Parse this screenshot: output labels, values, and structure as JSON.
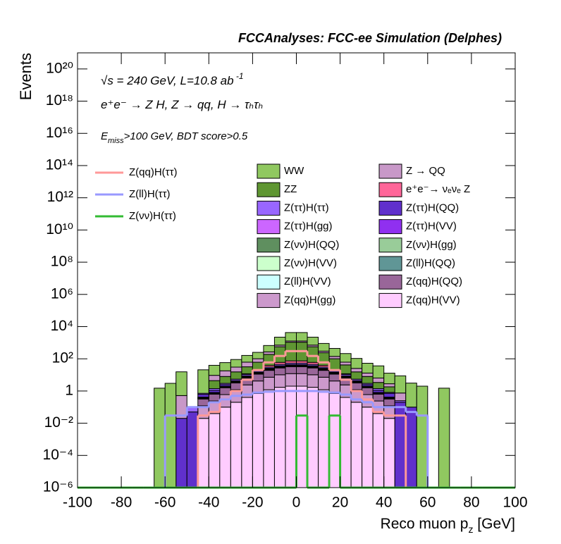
{
  "chart_data": {
    "type": "histogram",
    "stacked": true,
    "logy": true,
    "title": "FCCAnalyses: FCC-ee Simulation (Delphes)",
    "ylabel": "Events",
    "xlabel": [
      "Reco muon p",
      "z",
      " [GeV]"
    ],
    "annotations": [
      [
        "√s = 240 GeV, L=10.8 ab",
        " -1"
      ],
      [
        "e⁺e⁻ → Z H, Z  → qq, H  → τₕτₕ"
      ],
      [
        "E",
        "miss",
        ">100 GeV, BDT score>0.5"
      ]
    ],
    "xlim": [
      -100,
      100
    ],
    "xticks": [
      -100,
      -80,
      -60,
      -40,
      -20,
      0,
      20,
      40,
      60,
      80,
      100
    ],
    "ylim": [
      1e-06,
      1e+21
    ],
    "yticks": [
      {
        "value": 1e-06,
        "label": "10⁻⁶"
      },
      {
        "value": 0.0001,
        "label": "10⁻⁴"
      },
      {
        "value": 0.01,
        "label": "10⁻²"
      },
      1,
      {
        "value": 100.0,
        "label": "10²"
      },
      {
        "value": 10000.0,
        "label": "10⁴"
      },
      {
        "value": 1000000.0,
        "label": "10⁶"
      },
      {
        "value": 100000000.0,
        "label": "10⁸"
      },
      {
        "value": 10000000000.0,
        "label": "10¹⁰"
      },
      {
        "value": 1000000000000.0,
        "label": "10¹²"
      },
      {
        "value": 100000000000000.0,
        "label": "10¹⁴"
      },
      {
        "value": 1e+16,
        "label": "10¹⁶"
      },
      {
        "value": 1e+18,
        "label": "10¹⁸"
      },
      {
        "value": 1e+20,
        "label": "10²⁰"
      }
    ],
    "bins": [
      -100,
      -95,
      -90,
      -85,
      -80,
      -75,
      -70,
      -65,
      -60,
      -55,
      -50,
      -45,
      -40,
      -35,
      -30,
      -25,
      -20,
      -15,
      -10,
      -5,
      0,
      5,
      10,
      15,
      20,
      25,
      30,
      35,
      40,
      45,
      50,
      55,
      60,
      65,
      70,
      75,
      80,
      85,
      90,
      95,
      100
    ],
    "series": [
      {
        "name": "WW",
        "color": "#90c860",
        "values": [
          0,
          0,
          0,
          0,
          0,
          0,
          0,
          1.5,
          3,
          15,
          0,
          20,
          30,
          40,
          60,
          100,
          150,
          400,
          1500,
          3000,
          3000,
          1500,
          600,
          300,
          150,
          80,
          40,
          30,
          10,
          8,
          3,
          2,
          0,
          1.5,
          0,
          0,
          0,
          0,
          0,
          0
        ]
      },
      {
        "name": "Z → QQ",
        "color": "#c898c8",
        "values": [
          0,
          0,
          0,
          0,
          0,
          0,
          0,
          0,
          0,
          0.5,
          0,
          0,
          5,
          10,
          15,
          30,
          40,
          80,
          150,
          200,
          200,
          150,
          60,
          40,
          20,
          10,
          5,
          3,
          1,
          0.5,
          0,
          0,
          0,
          0,
          0,
          0,
          0,
          0,
          0,
          0
        ]
      },
      {
        "name": "ZZ",
        "color": "#5f9632",
        "values": [
          0,
          0,
          0,
          0,
          0,
          0,
          0,
          0,
          0,
          0,
          0,
          0,
          3,
          5,
          10,
          20,
          40,
          150,
          500,
          1000,
          1000,
          500,
          200,
          80,
          30,
          10,
          5,
          2,
          1,
          0,
          0,
          0,
          0,
          0,
          0,
          0,
          0,
          0,
          0,
          0
        ]
      },
      {
        "name": "e⁺e⁻→ νₑνₑ Z",
        "color": "#ff6699",
        "values": [
          0,
          0,
          0,
          0,
          0,
          0,
          0,
          0,
          0,
          0,
          0,
          0,
          0,
          0,
          0,
          1,
          3,
          8,
          15,
          20,
          20,
          15,
          8,
          3,
          1,
          0,
          0,
          0,
          0,
          0,
          0,
          0,
          0,
          0,
          0,
          0,
          0,
          0,
          0,
          0
        ]
      },
      {
        "name": "Z(ττ)H(ττ)",
        "color": "#9966ff",
        "values": [
          0,
          0,
          0,
          0,
          0,
          0,
          0,
          0,
          0,
          0,
          0.05,
          0.1,
          0.3,
          0.5,
          1,
          2,
          3,
          5,
          8,
          10,
          10,
          8,
          5,
          3,
          2,
          1,
          0.5,
          0.3,
          0.1,
          0.05,
          0,
          0,
          0,
          0,
          0,
          0,
          0,
          0,
          0,
          0
        ]
      },
      {
        "name": "Z(ττ)H(QQ)",
        "color": "#6030cc",
        "values": [
          0,
          0,
          0,
          0,
          0,
          0,
          0,
          0,
          0,
          0.02,
          0.05,
          0.2,
          0.3,
          0.5,
          0.5,
          1,
          1.5,
          2.5,
          4,
          5,
          5,
          4,
          2.5,
          1.5,
          1,
          0.5,
          0.5,
          0.3,
          0.3,
          0.2,
          0.1,
          0,
          0,
          0,
          0,
          0,
          0,
          0,
          0,
          0
        ]
      },
      {
        "name": "Z(ττ)H(gg)",
        "color": "#cc66ff",
        "values": [
          0,
          0,
          0,
          0,
          0,
          0,
          0,
          0,
          0,
          0,
          0,
          0.02,
          0.04,
          0.1,
          0.2,
          0.4,
          0.7,
          1.2,
          1.7,
          2,
          2,
          1.7,
          1.2,
          0.7,
          0.4,
          0.2,
          0.1,
          0.04,
          0.02,
          0,
          0,
          0,
          0,
          0,
          0,
          0,
          0,
          0,
          0,
          0
        ]
      },
      {
        "name": "Z(ττ)H(VV)",
        "color": "#9030f0",
        "values": [
          0,
          0,
          0,
          0,
          0,
          0,
          0,
          0,
          0,
          0,
          0,
          0.03,
          0.06,
          0.15,
          0.3,
          0.6,
          1.05,
          1.8,
          2.55,
          3,
          3,
          2.55,
          1.8,
          1.05,
          0.6,
          0.3,
          0.15,
          0.06,
          0.03,
          0,
          0,
          0,
          0,
          0,
          0,
          0,
          0,
          0,
          0,
          0
        ]
      },
      {
        "name": "Z(νν)H(QQ)",
        "color": "#5f8f5f",
        "values": [
          0,
          0,
          0,
          0,
          0,
          0,
          0,
          0,
          0,
          0,
          0,
          0.01,
          0.02,
          0.05,
          0.1,
          0.2,
          0.35,
          0.6,
          0.85,
          1,
          1,
          0.85,
          0.6,
          0.35,
          0.2,
          0.1,
          0.05,
          0.02,
          0.01,
          0,
          0,
          0,
          0,
          0,
          0,
          0,
          0,
          0,
          0,
          0
        ]
      },
      {
        "name": "Z(νν)H(gg)",
        "color": "#99cc99",
        "values": [
          0,
          0,
          0,
          0,
          0,
          0,
          0,
          0,
          0,
          0,
          0,
          0.005,
          0.01,
          0.025,
          0.05,
          0.1,
          0.175,
          0.3,
          0.425,
          0.5,
          0.5,
          0.425,
          0.3,
          0.175,
          0.1,
          0.05,
          0.025,
          0.01,
          0.005,
          0,
          0,
          0,
          0,
          0,
          0,
          0,
          0,
          0,
          0,
          0
        ]
      },
      {
        "name": "Z(νν)H(VV)",
        "color": "#ccffcc",
        "values": [
          0,
          0,
          0,
          0,
          0,
          0,
          0,
          0,
          0,
          0,
          0,
          0.001,
          0.002,
          0.005,
          0.01,
          0.02,
          0.035,
          0.06,
          0.085,
          0.1,
          0.1,
          0.085,
          0.06,
          0.035,
          0.02,
          0.01,
          0.005,
          0.002,
          0.001,
          0,
          0,
          0,
          0,
          0,
          0,
          0,
          0,
          0,
          0,
          0
        ]
      },
      {
        "name": "Z(ll)H(QQ)",
        "color": "#609696",
        "values": [
          0,
          0,
          0,
          0,
          0,
          0,
          0,
          0,
          0,
          0,
          0,
          0.003,
          0.006,
          0.015,
          0.03,
          0.06,
          0.105,
          0.18,
          0.255,
          0.3,
          0.3,
          0.255,
          0.18,
          0.105,
          0.06,
          0.03,
          0.015,
          0.006,
          0.003,
          0,
          0,
          0,
          0,
          0,
          0,
          0,
          0,
          0,
          0,
          0
        ]
      },
      {
        "name": "Z(ll)H(VV)",
        "color": "#ccffff",
        "values": [
          0,
          0,
          0,
          0,
          0,
          0,
          0,
          0,
          0,
          0,
          0,
          0.03,
          0.03,
          0.03,
          0.03,
          0.03,
          0.03,
          0.03,
          0.03,
          0.03,
          0.03,
          0.03,
          0.03,
          0.03,
          0.03,
          0.03,
          0.03,
          0.03,
          0.03,
          0,
          0,
          0,
          0,
          0,
          0,
          0,
          0,
          0,
          0,
          0
        ]
      },
      {
        "name": "Z(qq)H(QQ)",
        "color": "#996699",
        "values": [
          0,
          0,
          0,
          0,
          0,
          0,
          0,
          0,
          0,
          0,
          0,
          0.2,
          0.4,
          1,
          2,
          4,
          7,
          12,
          17,
          20,
          20,
          17,
          12,
          7,
          4,
          2,
          1,
          0.4,
          0.2,
          0,
          0,
          0,
          0,
          0,
          0,
          0,
          0,
          0,
          0,
          0
        ]
      },
      {
        "name": "Z(qq)H(gg)",
        "color": "#cc99cc",
        "values": [
          0,
          0,
          0,
          0,
          0,
          0,
          0,
          0,
          0,
          0,
          0,
          0.1,
          0.2,
          0.5,
          1,
          2,
          3.5,
          6,
          8.5,
          10,
          10,
          8.5,
          6,
          3.5,
          2,
          1,
          0.5,
          0.2,
          0.1,
          0,
          0,
          0,
          0,
          0,
          0,
          0,
          0,
          0,
          0,
          0
        ]
      },
      {
        "name": "Z(qq)H(VV)",
        "color": "#ffccff",
        "values": [
          0,
          0,
          0,
          0,
          0,
          0,
          0,
          0,
          0,
          0,
          0,
          0.02,
          0.04,
          0.1,
          0.2,
          0.4,
          0.7,
          1.2,
          1.7,
          2,
          2,
          1.7,
          1.2,
          0.7,
          0.4,
          0.2,
          0.1,
          0.04,
          0.02,
          0,
          0,
          0,
          0,
          0,
          0,
          0,
          0,
          0,
          0,
          0
        ]
      }
    ],
    "line_series": [
      {
        "name": "Z(qq)H(ττ)",
        "color": "#ff9999",
        "values": [
          0,
          0,
          0,
          0,
          0,
          0,
          0,
          0,
          0,
          0,
          0,
          0.03,
          0.05,
          0.3,
          1,
          5,
          20,
          60,
          150,
          300,
          300,
          150,
          60,
          20,
          5,
          1,
          0.3,
          0.05,
          0.03,
          0.03,
          0,
          0,
          0,
          0,
          0,
          0,
          0,
          0,
          0,
          0
        ]
      },
      {
        "name": "Z(ll)H(ττ)",
        "color": "#9999ff",
        "values": [
          0,
          0,
          0,
          0,
          0,
          0,
          0,
          0,
          0.03,
          0.03,
          0.1,
          0.1,
          0.2,
          0.3,
          0.5,
          0.6,
          0.8,
          0.9,
          1,
          1,
          1,
          1,
          0.9,
          0.8,
          0.6,
          0.3,
          0.2,
          0.1,
          0.1,
          0.1,
          0.05,
          0.03,
          0,
          0,
          0,
          0,
          0,
          0,
          0,
          0
        ]
      },
      {
        "name": "Z(νν)H(ττ)",
        "color": "#33bb33",
        "values": [
          0,
          0,
          0,
          0,
          0,
          0,
          0,
          0,
          0,
          0,
          0,
          0,
          0,
          0,
          0,
          0,
          0,
          0,
          0,
          0,
          0.03,
          0,
          0,
          0.03,
          0,
          0,
          0,
          0,
          0,
          0,
          0,
          0,
          0,
          0,
          0,
          0,
          0,
          0,
          0,
          0
        ]
      }
    ]
  }
}
